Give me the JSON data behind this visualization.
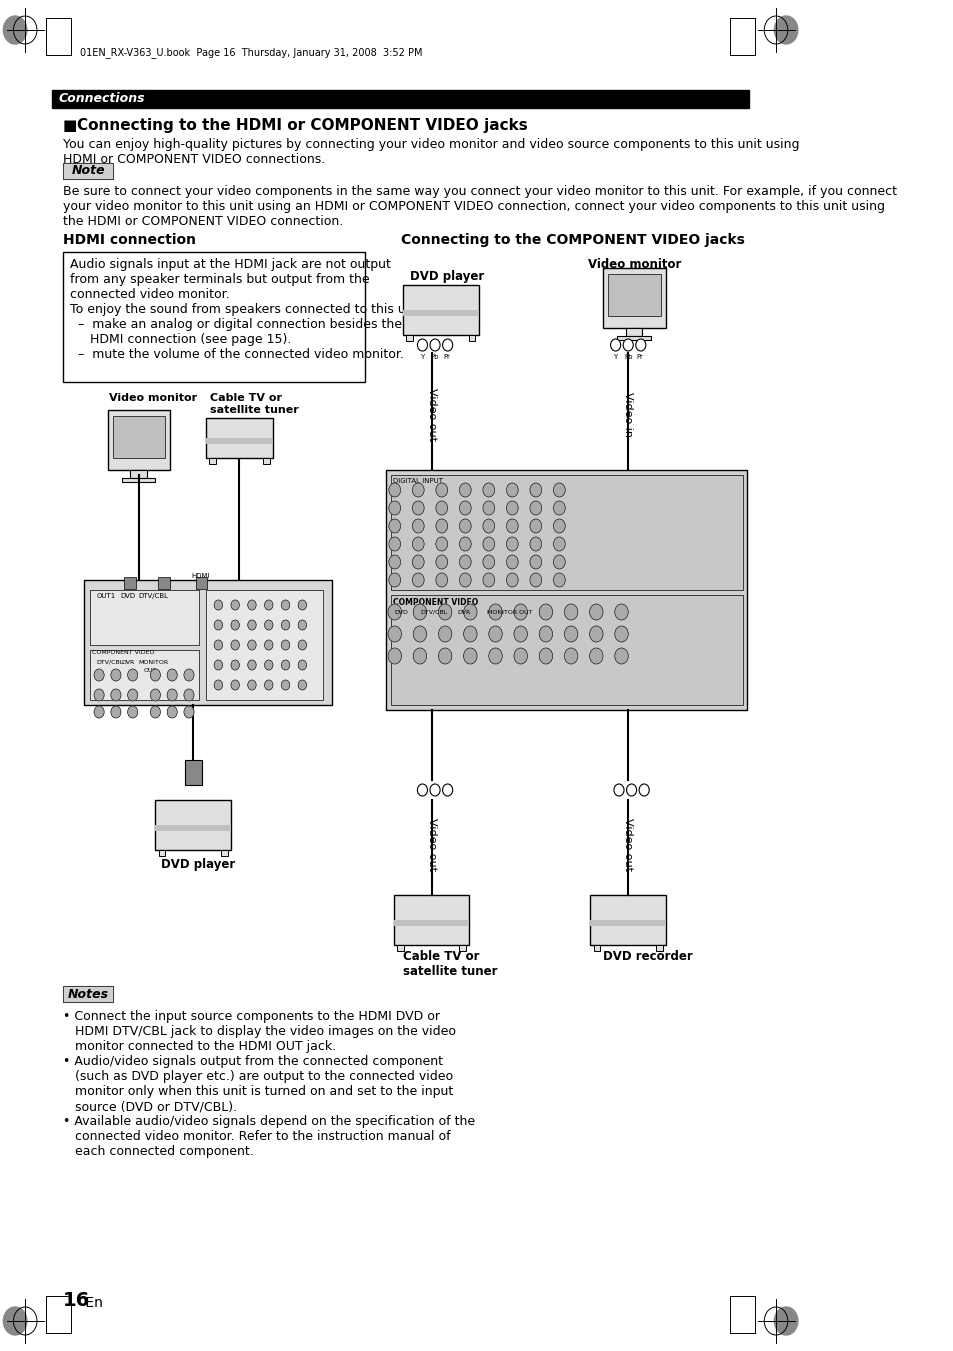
{
  "page_bg": "#ffffff",
  "header_bar_color": "#000000",
  "header_text": "Connections",
  "header_text_color": "#ffffff",
  "header_font_size": 9,
  "main_title": "Connecting to the HDMI or COMPONENT VIDEO jacks",
  "main_title_fontsize": 11,
  "intro_text": "You can enjoy high-quality pictures by connecting your video monitor and video source components to this unit using\nHDMI or COMPONENT VIDEO connections.",
  "intro_fontsize": 9,
  "note_box_color": "#d0d0d0",
  "note_label": "Note",
  "note_label_fontsize": 9,
  "note_body": "Be sure to connect your video components in the same way you connect your video monitor to this unit. For example, if you connect\nyour video monitor to this unit using an HDMI or COMPONENT VIDEO connection, connect your video components to this unit using\nthe HDMI or COMPONENT VIDEO connection.",
  "note_body_fontsize": 9,
  "hdmi_section_title": "HDMI connection",
  "hdmi_section_fontsize": 10,
  "component_section_title": "Connecting to the COMPONENT VIDEO jacks",
  "component_section_fontsize": 10,
  "hdmi_note_box_text": "Audio signals input at the HDMI jack are not output\nfrom any speaker terminals but output from the\nconnected video monitor.\nTo enjoy the sound from speakers connected to this unit,\n  –  make an analog or digital connection besides the\n     HDMI connection (see page 15).\n  –  mute the volume of the connected video monitor.",
  "hdmi_note_fontsize": 9,
  "video_monitor_label_left": "Video monitor",
  "cable_tv_label_left": "Cable TV or\nsatellite tuner",
  "dvd_player_label_bottom": "DVD player",
  "dvd_player_label_top_right": "DVD player",
  "video_monitor_label_right": "Video monitor",
  "cable_tv_label_right": "Cable TV or\nsatellite tuner",
  "dvd_recorder_label": "DVD recorder",
  "video_out_label1": "Video out",
  "video_in_label": "Video in",
  "video_out_label2": "Video out",
  "video_out_label3": "Video out",
  "notes_label": "Notes",
  "notes_text": "• Connect the input source components to the HDMI DVD or\n   HDMI DTV/CBL jack to display the video images on the video\n   monitor connected to the HDMI OUT jack.\n• Audio/video signals output from the connected component\n   (such as DVD player etc.) are output to the connected video\n   monitor only when this unit is turned on and set to the input\n   source (DVD or DTV/CBL).\n• Available audio/video signals depend on the specification of the\n   connected video monitor. Refer to the instruction manual of\n   each connected component.",
  "notes_fontsize": 9,
  "page_number": "16",
  "page_suffix": " En",
  "file_info": "01EN_RX-V363_U.book  Page 16  Thursday, January 31, 2008  3:52 PM"
}
